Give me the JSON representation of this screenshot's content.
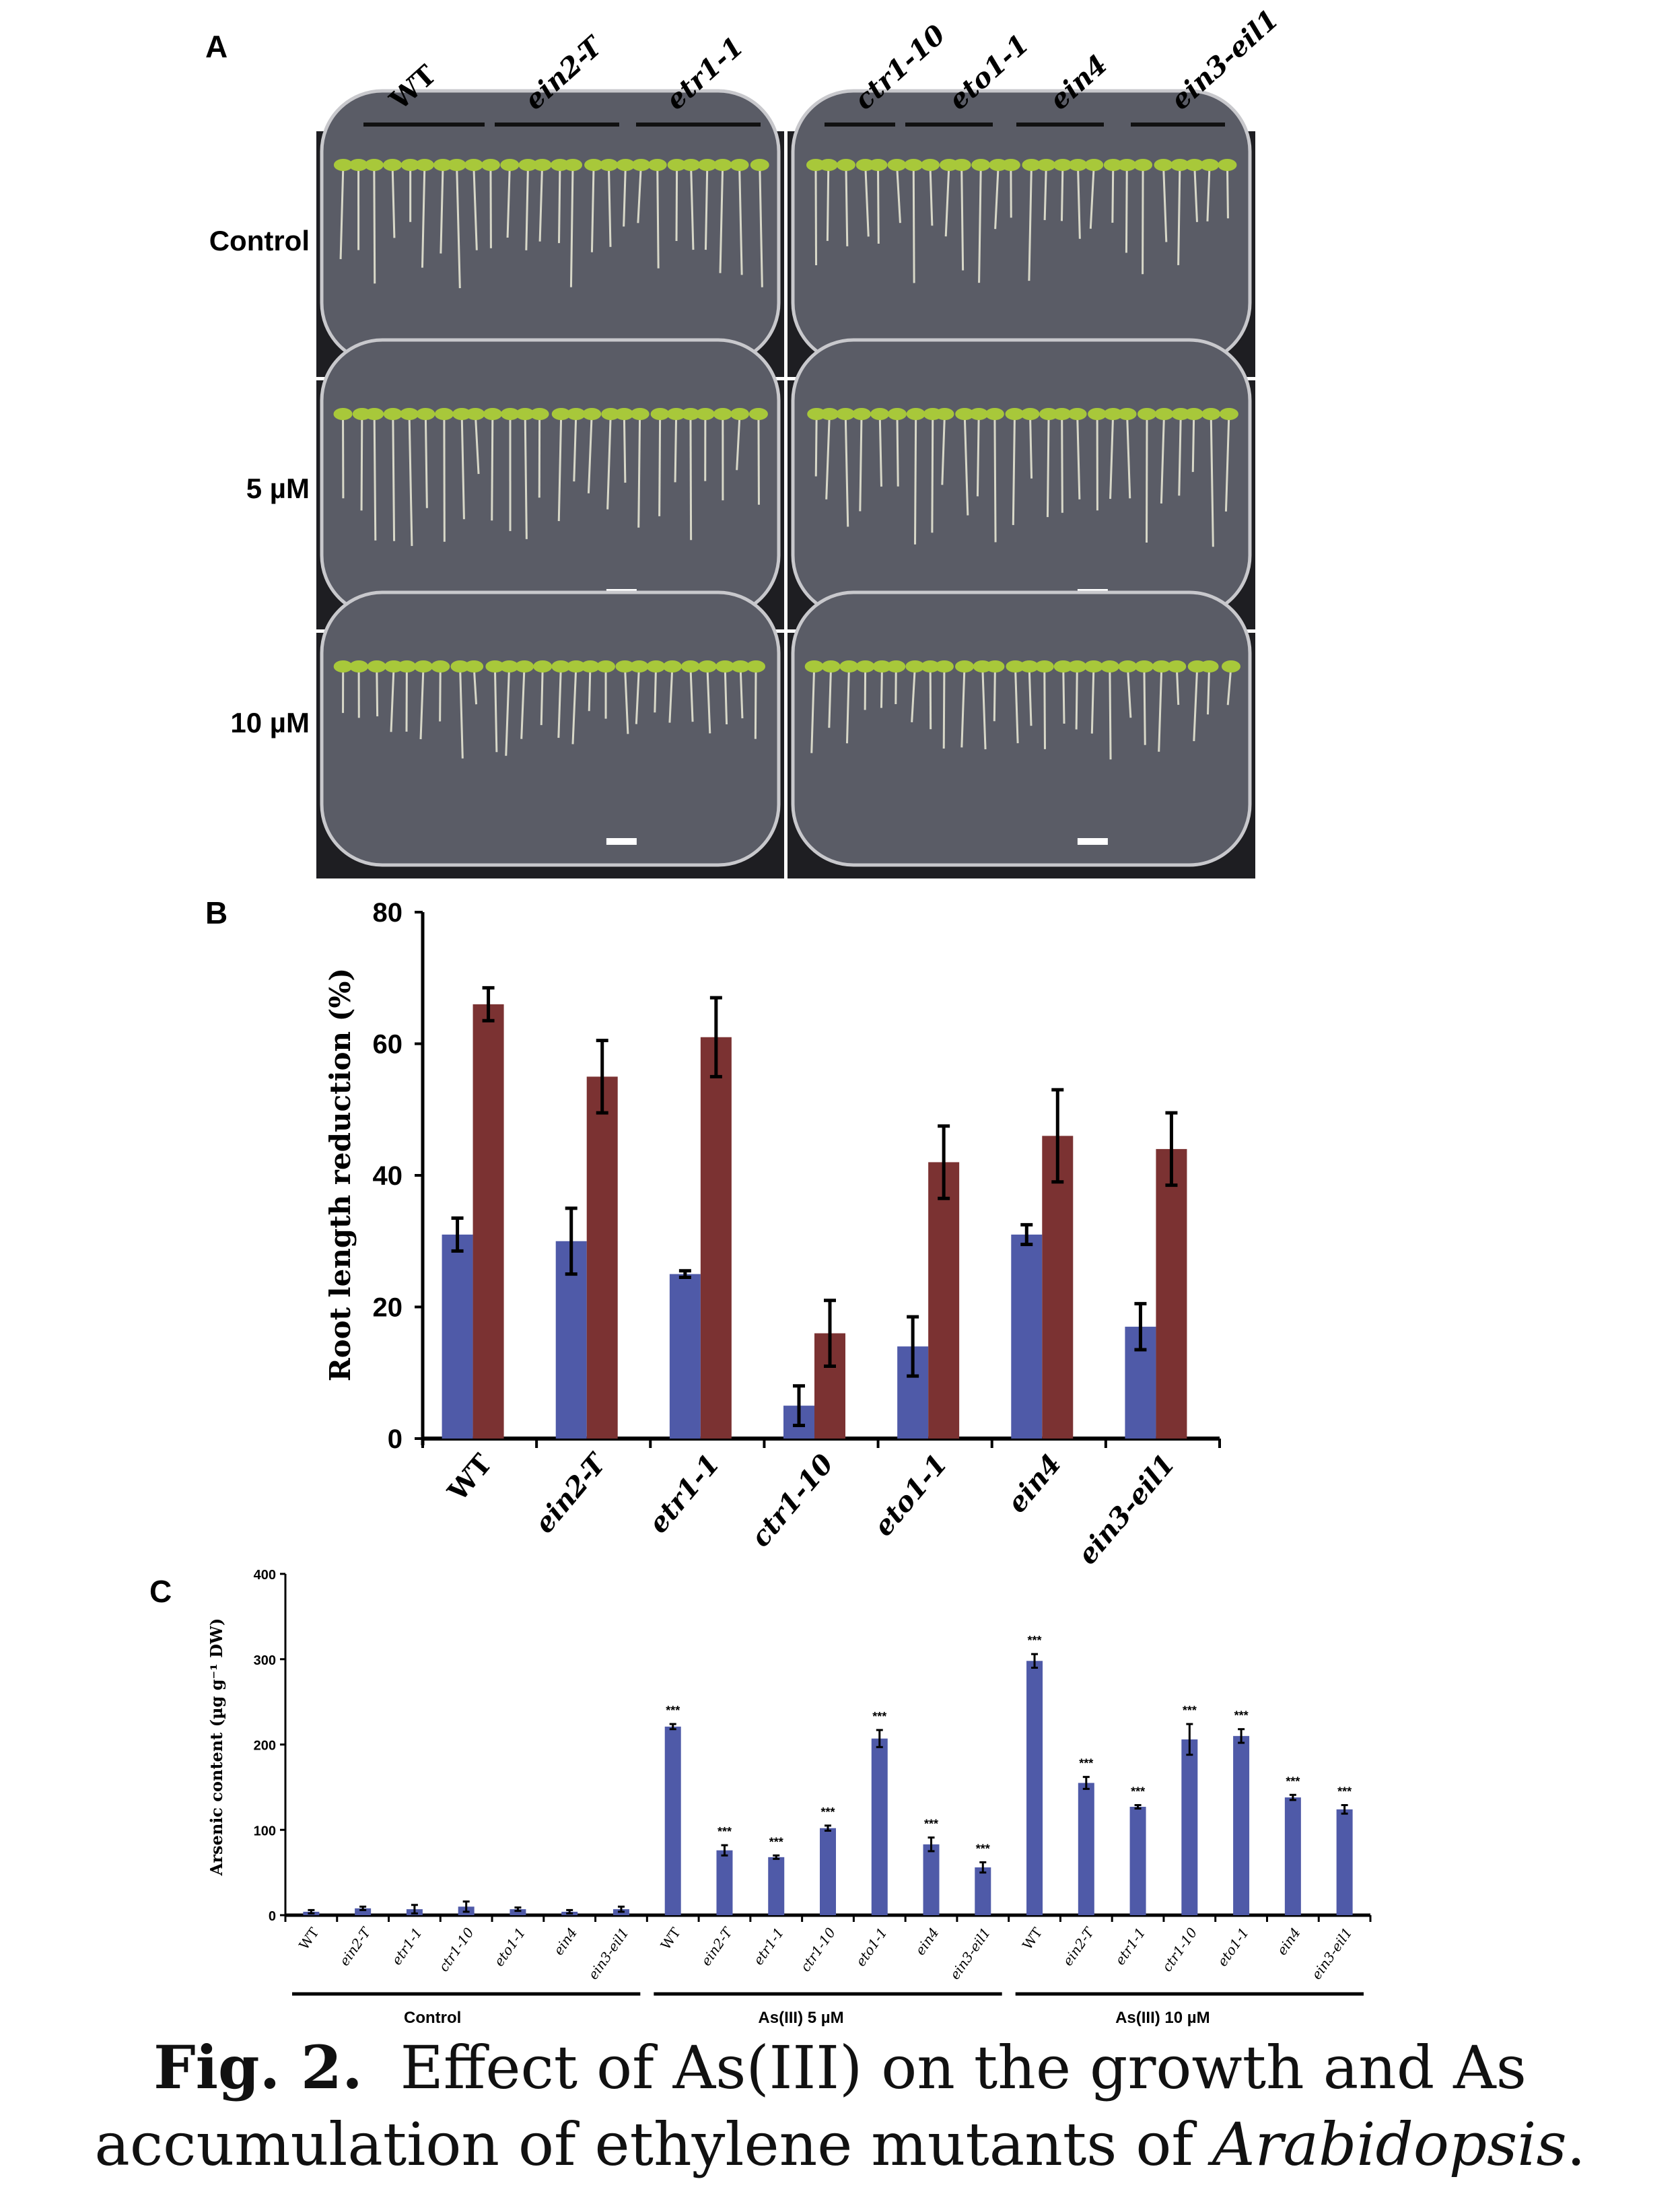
{
  "panel_labels": {
    "a": "A",
    "b": "B",
    "c": "C"
  },
  "panel_a": {
    "genotypes": [
      "WT",
      "ein2-T",
      "etr1-1",
      "ctr1-10",
      "eto1-1",
      "ein4",
      "ein3-eil1"
    ],
    "rows": [
      "Control",
      "5 µM",
      "10 µM"
    ],
    "seedling_color": "#a8c83a"
  },
  "chart_data": [
    {
      "type": "bar",
      "panel": "B",
      "categories": [
        "WT",
        "ein2-T",
        "etr1-1",
        "ctr1-10",
        "eto1-1",
        "ein4",
        "ein3-eil1"
      ],
      "series": [
        {
          "color": "#4f5aa8",
          "values": [
            31,
            30,
            25,
            5,
            14,
            31,
            17
          ],
          "errors": [
            2.5,
            5,
            0.5,
            3,
            4.5,
            1.5,
            3.5
          ]
        },
        {
          "color": "#7b3232",
          "values": [
            66,
            55,
            61,
            16,
            42,
            46,
            44
          ],
          "errors": [
            2.5,
            5.5,
            6,
            5,
            5.5,
            7,
            5.5
          ]
        }
      ],
      "ylabel": "Root length reduction (%)",
      "ylim": [
        0,
        80
      ],
      "yticks": [
        "0",
        "20",
        "40",
        "60",
        "80"
      ],
      "grid": false
    },
    {
      "type": "bar",
      "panel": "C",
      "groups": [
        "Control",
        "As(III) 5 µM",
        "As(III) 10 µM"
      ],
      "categories": [
        "WT",
        "ein2-T",
        "etr1-1",
        "ctr1-10",
        "eto1-1",
        "ein4",
        "ein3-eil1"
      ],
      "color": "#4f5aa8",
      "values": [
        [
          4,
          8,
          7,
          10,
          7,
          4,
          7
        ],
        [
          221,
          76,
          68,
          102,
          207,
          83,
          56
        ],
        [
          298,
          155,
          127,
          206,
          210,
          138,
          124
        ]
      ],
      "errors": [
        [
          2,
          2,
          5,
          6,
          2,
          2,
          3
        ],
        [
          3,
          6,
          2,
          3,
          10,
          8,
          6
        ],
        [
          8,
          7,
          2,
          18,
          8,
          3,
          5
        ]
      ],
      "significance": [
        [
          "",
          "",
          "",
          "",
          "",
          "",
          ""
        ],
        [
          "***",
          "***",
          "***",
          "***",
          "***",
          "***",
          "***"
        ],
        [
          "***",
          "***",
          "***",
          "***",
          "***",
          "***",
          "***"
        ]
      ],
      "ylabel": "Arsenic content (µg g⁻¹ DW)",
      "ylim": [
        0,
        400
      ],
      "yticks": [
        "0",
        "100",
        "200",
        "300",
        "400"
      ],
      "grid": false
    }
  ],
  "caption": {
    "label": "Fig. 2.",
    "line1": "Effect of As(III) on the growth and As",
    "line2": "accumulation of ethylene mutants of ",
    "italic": "Arabidopsis",
    "end": "."
  }
}
